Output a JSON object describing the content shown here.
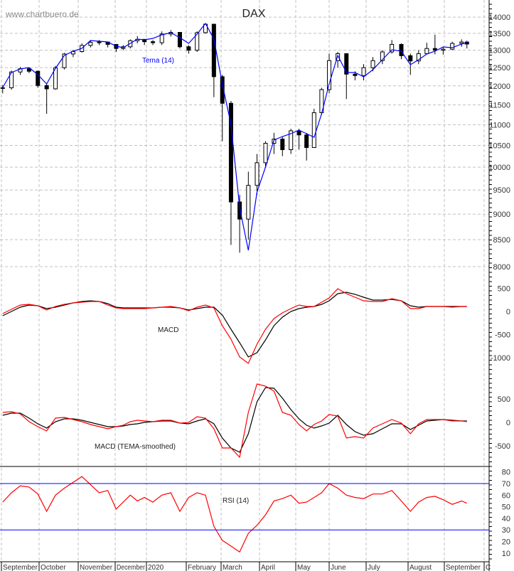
{
  "watermark": "www.chartbuero.de",
  "chart_data": [
    {
      "type": "candlestick",
      "title": "DAX",
      "overlay_label": "Tema (14)",
      "y_scale": "log",
      "ylim": [
        7700,
        14400
      ],
      "y_ticks": [
        8000,
        8500,
        9000,
        9500,
        10000,
        10500,
        11000,
        11500,
        12000,
        12500,
        13000,
        13500,
        14000
      ],
      "grid": true,
      "colors": {
        "candles": "#000000",
        "tema": "#0000ff",
        "grid": "#c0c0c0"
      },
      "dates": [
        "2019-09-02",
        "2019-09-09",
        "2019-09-16",
        "2019-09-23",
        "2019-09-30",
        "2019-10-07",
        "2019-10-14",
        "2019-10-21",
        "2019-10-28",
        "2019-11-04",
        "2019-11-11",
        "2019-11-18",
        "2019-11-25",
        "2019-12-02",
        "2019-12-09",
        "2019-12-16",
        "2019-12-23",
        "2019-12-30",
        "2020-01-06",
        "2020-01-13",
        "2020-01-20",
        "2020-01-27",
        "2020-02-03",
        "2020-02-10",
        "2020-02-17",
        "2020-02-24",
        "2020-03-02",
        "2020-03-09",
        "2020-03-16",
        "2020-03-23",
        "2020-03-30",
        "2020-04-06",
        "2020-04-13",
        "2020-04-20",
        "2020-04-27",
        "2020-05-04",
        "2020-05-11",
        "2020-05-18",
        "2020-05-25",
        "2020-06-01",
        "2020-06-08",
        "2020-06-15",
        "2020-06-22",
        "2020-06-29",
        "2020-07-06",
        "2020-07-13",
        "2020-07-20",
        "2020-07-27",
        "2020-08-03",
        "2020-08-10",
        "2020-08-17",
        "2020-08-24",
        "2020-08-31",
        "2020-09-07",
        "2020-09-14",
        "2020-09-18"
      ],
      "close": [
        11950,
        12380,
        12470,
        12400,
        12010,
        11920,
        12500,
        12890,
        12960,
        13140,
        13230,
        13240,
        13170,
        13050,
        13100,
        13280,
        13320,
        13250,
        13220,
        13480,
        13530,
        13100,
        13000,
        13520,
        13780,
        12250,
        11540,
        9250,
        8900,
        9600,
        10100,
        10550,
        10650,
        10400,
        10850,
        10750,
        10450,
        11300,
        11900,
        12700,
        12900,
        12320,
        12280,
        12500,
        12700,
        12950,
        13170,
        12840,
        12690,
        12900,
        13050,
        13000,
        13030,
        13200,
        13240,
        13180
      ],
      "high": [
        12020,
        12420,
        12520,
        12500,
        12420,
        12060,
        12550,
        12920,
        13010,
        13200,
        13300,
        13300,
        13250,
        13180,
        13150,
        13320,
        13420,
        13330,
        13300,
        13560,
        13600,
        13520,
        13150,
        13560,
        13800,
        13400,
        12300,
        11600,
        9400,
        9900,
        10300,
        10600,
        10800,
        10700,
        10900,
        10900,
        10800,
        11400,
        11950,
        12900,
        12950,
        12850,
        12400,
        12600,
        12800,
        13000,
        13300,
        13200,
        12900,
        13000,
        13220,
        13460,
        13100,
        13250,
        13320,
        13280
      ],
      "low": [
        11800,
        11900,
        12300,
        12350,
        11950,
        11270,
        11900,
        12450,
        12800,
        12930,
        13080,
        13150,
        13080,
        12950,
        13000,
        13050,
        13200,
        13150,
        13150,
        13150,
        13400,
        13050,
        12900,
        12950,
        13500,
        11700,
        10600,
        8400,
        8255,
        8500,
        9400,
        10000,
        10300,
        10250,
        10300,
        10400,
        10150,
        10450,
        11250,
        11800,
        12500,
        11650,
        12150,
        12150,
        12400,
        12600,
        12900,
        12740,
        12300,
        12600,
        12880,
        12880,
        12870,
        13000,
        13100,
        13050
      ],
      "tema": [
        11958,
        12365,
        12464,
        12504,
        12306,
        12054,
        12484,
        12847,
        12971,
        13054,
        13285,
        13264,
        13242,
        13116,
        13074,
        13200,
        13328,
        13306,
        13349,
        13455,
        13519,
        13370,
        13200,
        13476,
        13803,
        13328,
        12054,
        11006,
        9132,
        8299,
        9458,
        10002,
        10626,
        10712,
        10780,
        10866,
        10780,
        10695,
        11272,
        12054,
        12847,
        12365,
        12365,
        12247,
        12444,
        12725,
        13012,
        12971,
        12584,
        12725,
        12888,
        12971,
        13095,
        13074,
        13179,
        13222
      ]
    },
    {
      "type": "line",
      "label": "MACD",
      "ylim": [
        -1250,
        650
      ],
      "y_ticks": [
        500,
        0,
        -500,
        -1000
      ],
      "series": [
        {
          "color": "#ff0000",
          "values": [
            -46,
            46,
            139,
            154,
            123,
            31,
            108,
            154,
            185,
            200,
            215,
            215,
            139,
            77,
            62,
            62,
            62,
            62,
            77,
            92,
            108,
            77,
            15,
            92,
            139,
            77,
            -308,
            -600,
            -985,
            -1123,
            -708,
            -385,
            -154,
            -31,
            62,
            139,
            108,
            108,
            200,
            293,
            493,
            385,
            308,
            231,
            215,
            215,
            277,
            231,
            62,
            62,
            108,
            108,
            108,
            92,
            108,
            108
          ]
        },
        {
          "color": "#000000",
          "values": [
            -92,
            0,
            92,
            139,
            123,
            62,
            92,
            139,
            185,
            215,
            231,
            215,
            169,
            92,
            77,
            77,
            77,
            77,
            77,
            92,
            92,
            77,
            31,
            62,
            92,
            92,
            -77,
            -385,
            -677,
            -985,
            -893,
            -615,
            -308,
            -123,
            0,
            62,
            92,
            108,
            154,
            231,
            385,
            416,
            370,
            308,
            246,
            246,
            262,
            231,
            123,
            92,
            108,
            108,
            108,
            108,
            108,
            108
          ]
        }
      ]
    },
    {
      "type": "line",
      "label": "MACD (TEMA-smoothed)",
      "ylim": [
        -900,
        900
      ],
      "y_ticks": [
        500,
        0,
        -500
      ],
      "series": [
        {
          "color": "#ff0000",
          "values": [
            212,
            227,
            182,
            15,
            -91,
            -182,
            91,
            106,
            61,
            15,
            -45,
            -91,
            -136,
            -91,
            -61,
            15,
            45,
            30,
            15,
            45,
            45,
            -15,
            0,
            121,
            91,
            -136,
            -545,
            -545,
            -742,
            212,
            818,
            773,
            667,
            212,
            152,
            -45,
            -182,
            -45,
            30,
            167,
            136,
            -333,
            -303,
            -333,
            -121,
            -30,
            61,
            -15,
            -242,
            -30,
            61,
            61,
            61,
            30,
            30,
            15
          ]
        },
        {
          "color": "#000000",
          "values": [
            152,
            197,
            197,
            91,
            -30,
            -121,
            15,
            76,
            76,
            45,
            0,
            -45,
            -91,
            -91,
            -76,
            -45,
            -30,
            0,
            15,
            30,
            30,
            -15,
            -30,
            30,
            76,
            -30,
            -333,
            -545,
            -636,
            -242,
            439,
            742,
            727,
            515,
            273,
            76,
            -61,
            -121,
            -76,
            -15,
            152,
            -45,
            -197,
            -273,
            -242,
            -136,
            -30,
            -30,
            -152,
            -61,
            30,
            45,
            61,
            45,
            30,
            30
          ]
        }
      ]
    },
    {
      "type": "line",
      "label": "RSI (14)",
      "ylim": [
        3,
        85
      ],
      "y_ticks": [
        80,
        70,
        60,
        50,
        40,
        30,
        20,
        10
      ],
      "reference_lines": [
        70,
        30
      ],
      "series": [
        {
          "color": "#ff0000",
          "values": [
            54,
            62,
            68,
            67,
            61,
            46,
            60,
            66,
            71,
            76,
            69,
            62,
            64,
            48,
            54,
            60,
            55,
            58,
            54,
            60,
            62,
            46,
            58,
            62,
            60,
            33,
            21,
            16,
            11,
            27,
            34,
            43,
            55,
            57,
            60,
            53,
            54,
            58,
            62,
            70,
            66,
            60,
            58,
            57,
            61,
            61,
            64,
            55,
            46,
            54,
            58,
            59,
            56,
            52,
            55,
            53
          ]
        }
      ]
    }
  ],
  "x_axis": {
    "month_labels": [
      "September",
      "October",
      "November",
      "December",
      "2020",
      "February",
      "March",
      "April",
      "May",
      "June",
      "July",
      "August",
      "September",
      "C"
    ]
  }
}
